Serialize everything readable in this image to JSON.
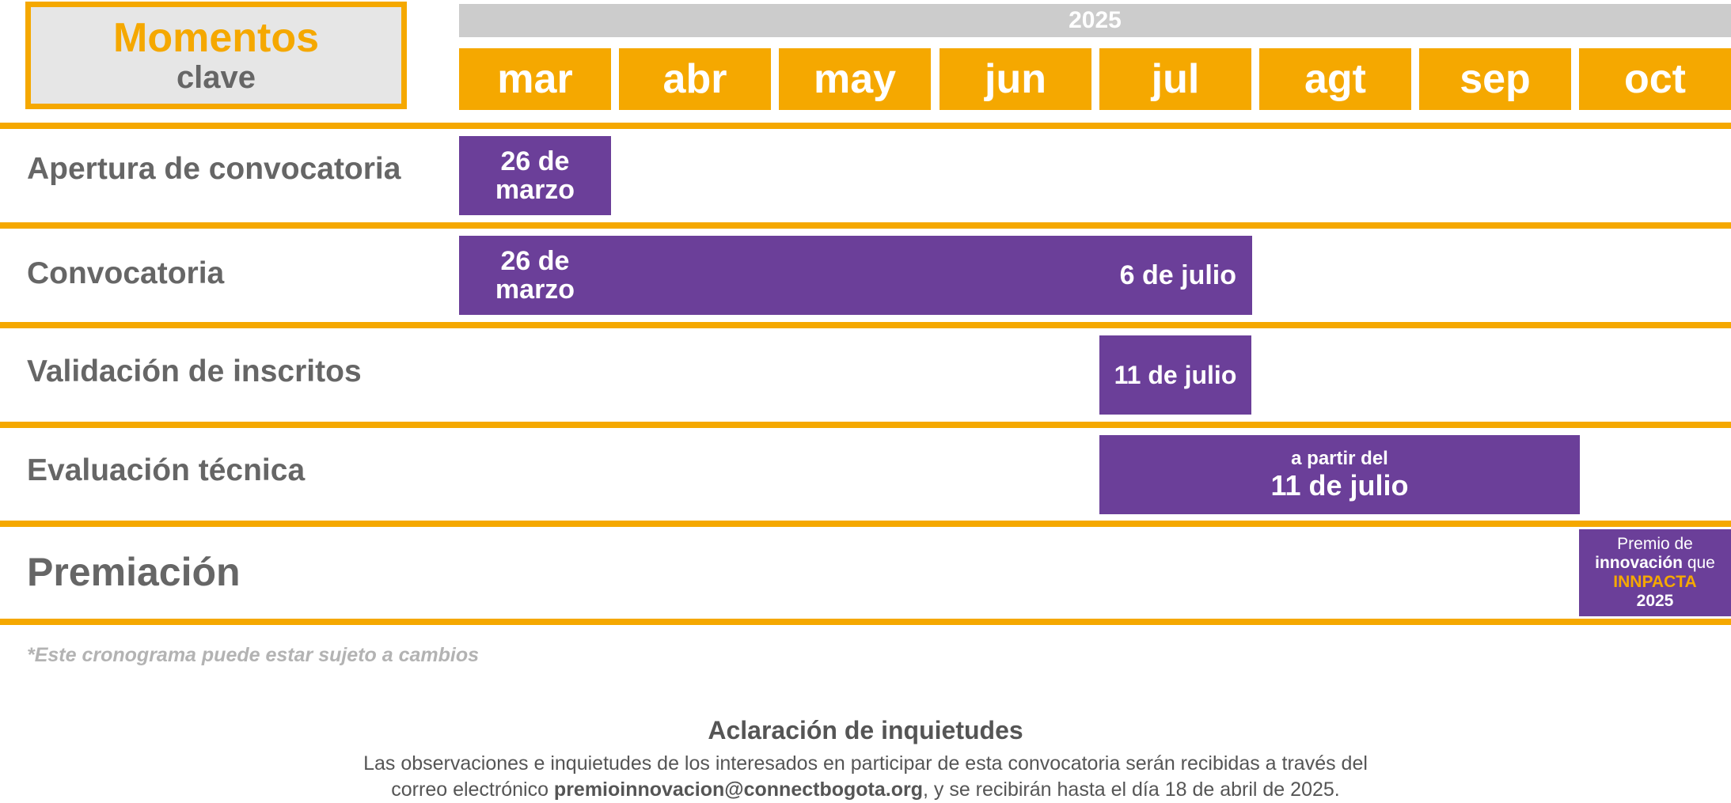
{
  "header": {
    "title": "Momentos",
    "subtitle": "clave"
  },
  "year": "2025",
  "months": [
    "mar",
    "abr",
    "may",
    "jun",
    "jul",
    "agt",
    "sep",
    "oct"
  ],
  "rows": [
    {
      "label": "Apertura de convocatoria"
    },
    {
      "label": "Convocatoria"
    },
    {
      "label": "Validación de inscritos"
    },
    {
      "label": "Evaluación técnica"
    },
    {
      "label": "Premiación"
    }
  ],
  "bars": {
    "apertura": {
      "line1": "26 de",
      "line2": "marzo"
    },
    "convocatoria": {
      "start_line1": "26 de",
      "start_line2": "marzo",
      "end": "6 de julio"
    },
    "validacion": {
      "text": "11 de julio"
    },
    "evaluacion": {
      "small": "a partir del",
      "big": "11 de julio"
    },
    "premiacion": {
      "line1": "Premio de",
      "line2_bold": "innovación",
      "line2_rest": " que",
      "line3": "INNPACTA",
      "line4": "2025"
    }
  },
  "note": "*Este cronograma puede estar sujeto a cambios",
  "footer": {
    "title": "Aclaración de inquietudes",
    "line1": "Las observaciones e inquietudes de los interesados en participar de esta convocatoria serán recibidas a través del",
    "line2_pre": "correo electrónico ",
    "email": "premioinnovacion@connectbogota.org",
    "line2_post": ", y se recibirán hasta el día 18 de abril de 2025."
  },
  "colors": {
    "orange": "#f5a800",
    "purple": "#6b3f99",
    "gray_text": "#666666",
    "light_gray": "#cccccc"
  }
}
